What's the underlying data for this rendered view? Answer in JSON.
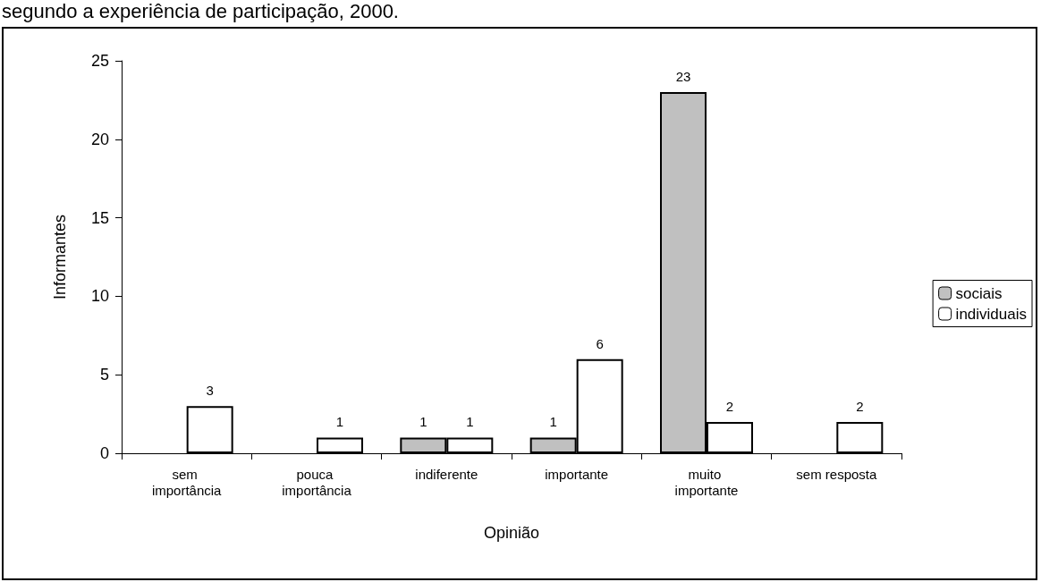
{
  "chart_data": {
    "type": "bar",
    "title": "segundo a experiência de participação, 2000.",
    "xlabel": "Opinião",
    "ylabel": "Informantes",
    "categories": [
      "sem importância",
      "pouca importância",
      "indiferente",
      "importante",
      "muito importante",
      "sem resposta"
    ],
    "series": [
      {
        "name": "sociais",
        "color": "#c0c0c0",
        "values": [
          null,
          null,
          1,
          1,
          23,
          null
        ]
      },
      {
        "name": "individuais",
        "color": "#ffffff",
        "values": [
          3,
          1,
          1,
          6,
          2,
          2
        ]
      }
    ],
    "ylim": [
      0,
      25
    ],
    "yticks": [
      0,
      5,
      10,
      15,
      20,
      25
    ],
    "grid": false,
    "legend": "right",
    "data_labels": true
  }
}
